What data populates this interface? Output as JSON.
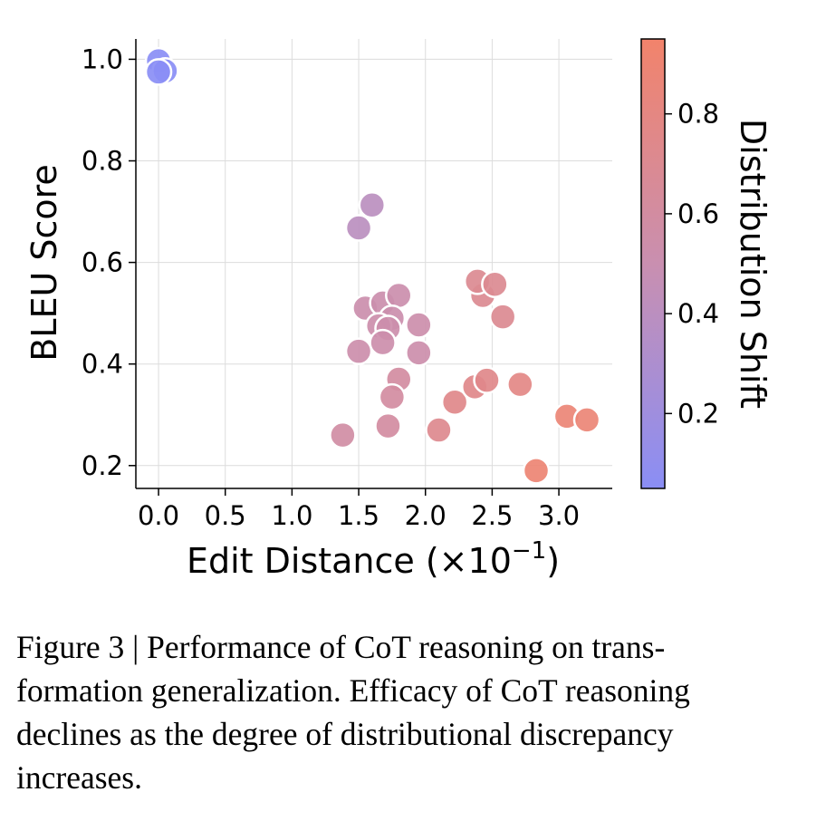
{
  "chart_data": {
    "type": "scatter",
    "xlabel": "Edit Distance (×10",
    "xlabel_exponent": "−1",
    "xlabel_close": ")",
    "ylabel": "BLEU Score",
    "xlim": [
      -0.17,
      3.4
    ],
    "ylim": [
      0.155,
      1.04
    ],
    "xticks": [
      "0.0",
      "0.5",
      "1.0",
      "1.5",
      "2.0",
      "2.5",
      "3.0"
    ],
    "yticks": [
      "0.2",
      "0.4",
      "0.6",
      "0.8",
      "1.0"
    ],
    "grid": true,
    "colorbar": {
      "label": "Distribution Shift",
      "range": [
        0.05,
        0.95
      ],
      "ticks": [
        "0.2",
        "0.4",
        "0.6",
        "0.8"
      ],
      "low_color": "#8a8ef5",
      "mid_color": "#c98fb0",
      "high_color": "#f2836b"
    },
    "points": [
      {
        "x": 0.0,
        "y": 0.997,
        "c": 0.05
      },
      {
        "x": 0.05,
        "y": 0.977,
        "c": 0.05
      },
      {
        "x": 0.0,
        "y": 0.975,
        "c": 0.05
      },
      {
        "x": 1.6,
        "y": 0.713,
        "c": 0.4
      },
      {
        "x": 1.5,
        "y": 0.668,
        "c": 0.4
      },
      {
        "x": 1.55,
        "y": 0.51,
        "c": 0.52
      },
      {
        "x": 1.68,
        "y": 0.52,
        "c": 0.52
      },
      {
        "x": 1.8,
        "y": 0.535,
        "c": 0.52
      },
      {
        "x": 1.75,
        "y": 0.49,
        "c": 0.52
      },
      {
        "x": 1.65,
        "y": 0.475,
        "c": 0.53
      },
      {
        "x": 1.72,
        "y": 0.47,
        "c": 0.53
      },
      {
        "x": 1.95,
        "y": 0.477,
        "c": 0.53
      },
      {
        "x": 1.68,
        "y": 0.442,
        "c": 0.53
      },
      {
        "x": 1.5,
        "y": 0.425,
        "c": 0.53
      },
      {
        "x": 1.95,
        "y": 0.422,
        "c": 0.53
      },
      {
        "x": 1.8,
        "y": 0.37,
        "c": 0.6
      },
      {
        "x": 1.75,
        "y": 0.335,
        "c": 0.6
      },
      {
        "x": 1.72,
        "y": 0.278,
        "c": 0.6
      },
      {
        "x": 1.38,
        "y": 0.26,
        "c": 0.58
      },
      {
        "x": 2.1,
        "y": 0.27,
        "c": 0.72
      },
      {
        "x": 2.22,
        "y": 0.325,
        "c": 0.75
      },
      {
        "x": 2.37,
        "y": 0.355,
        "c": 0.75
      },
      {
        "x": 2.46,
        "y": 0.368,
        "c": 0.75
      },
      {
        "x": 2.71,
        "y": 0.36,
        "c": 0.78
      },
      {
        "x": 2.43,
        "y": 0.535,
        "c": 0.7
      },
      {
        "x": 2.39,
        "y": 0.563,
        "c": 0.7
      },
      {
        "x": 2.52,
        "y": 0.557,
        "c": 0.7
      },
      {
        "x": 2.58,
        "y": 0.493,
        "c": 0.7
      },
      {
        "x": 3.06,
        "y": 0.297,
        "c": 0.88
      },
      {
        "x": 3.21,
        "y": 0.29,
        "c": 0.88
      },
      {
        "x": 2.83,
        "y": 0.19,
        "c": 0.9
      }
    ]
  },
  "caption": {
    "text": "Figure 3 | Performance of CoT reasoning on trans-\nformation generalization. Efficacy of CoT reasoning\ndeclines as the degree of distributional discrepancy\nincreases."
  }
}
